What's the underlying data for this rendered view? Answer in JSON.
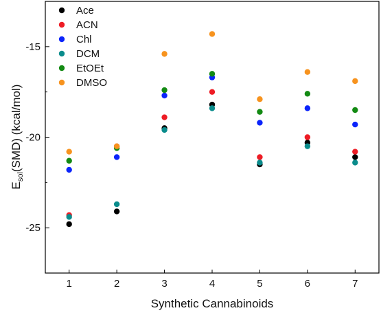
{
  "chart_data": {
    "type": "scatter",
    "xlabel": "Synthetic Cannabinoids",
    "ylabel_main": "E",
    "ylabel_sub": "sol",
    "ylabel_rest": "(SMD)  (kcal/mol)",
    "x": [
      1,
      2,
      3,
      4,
      5,
      6,
      7
    ],
    "x_tick_labels": [
      "1",
      "2",
      "3",
      "4",
      "5",
      "6",
      "7"
    ],
    "xlim": [
      0.5,
      7.5
    ],
    "ylim": [
      -27.5,
      -12.5
    ],
    "y_ticks": [
      -25,
      -20,
      -15
    ],
    "y_tick_labels": [
      "-25",
      "-20",
      "-15"
    ],
    "grid": false,
    "legend_position": "top-left",
    "series": [
      {
        "name": "Ace",
        "color": "#000000",
        "values": [
          -24.8,
          -24.1,
          -19.5,
          -18.2,
          -21.5,
          -20.3,
          -21.1
        ]
      },
      {
        "name": "ACN",
        "color": "#ee1c25",
        "values": [
          -24.3,
          -20.5,
          -18.9,
          -17.5,
          -21.1,
          -20.0,
          -20.8
        ]
      },
      {
        "name": "Chl",
        "color": "#0b24fb",
        "values": [
          -21.8,
          -21.1,
          -17.7,
          -16.7,
          -19.2,
          -18.4,
          -19.3
        ]
      },
      {
        "name": "DCM",
        "color": "#0a8c8c",
        "values": [
          -24.4,
          -23.7,
          -19.6,
          -18.4,
          -21.4,
          -20.5,
          -21.4
        ]
      },
      {
        "name": "EtOEt",
        "color": "#138a13",
        "values": [
          -21.3,
          -20.6,
          -17.4,
          -16.5,
          -18.6,
          -17.6,
          -18.5
        ]
      },
      {
        "name": "DMSO",
        "color": "#f7931e",
        "values": [
          -20.8,
          -20.5,
          -15.4,
          -14.3,
          -17.9,
          -16.4,
          -16.9
        ]
      }
    ]
  }
}
